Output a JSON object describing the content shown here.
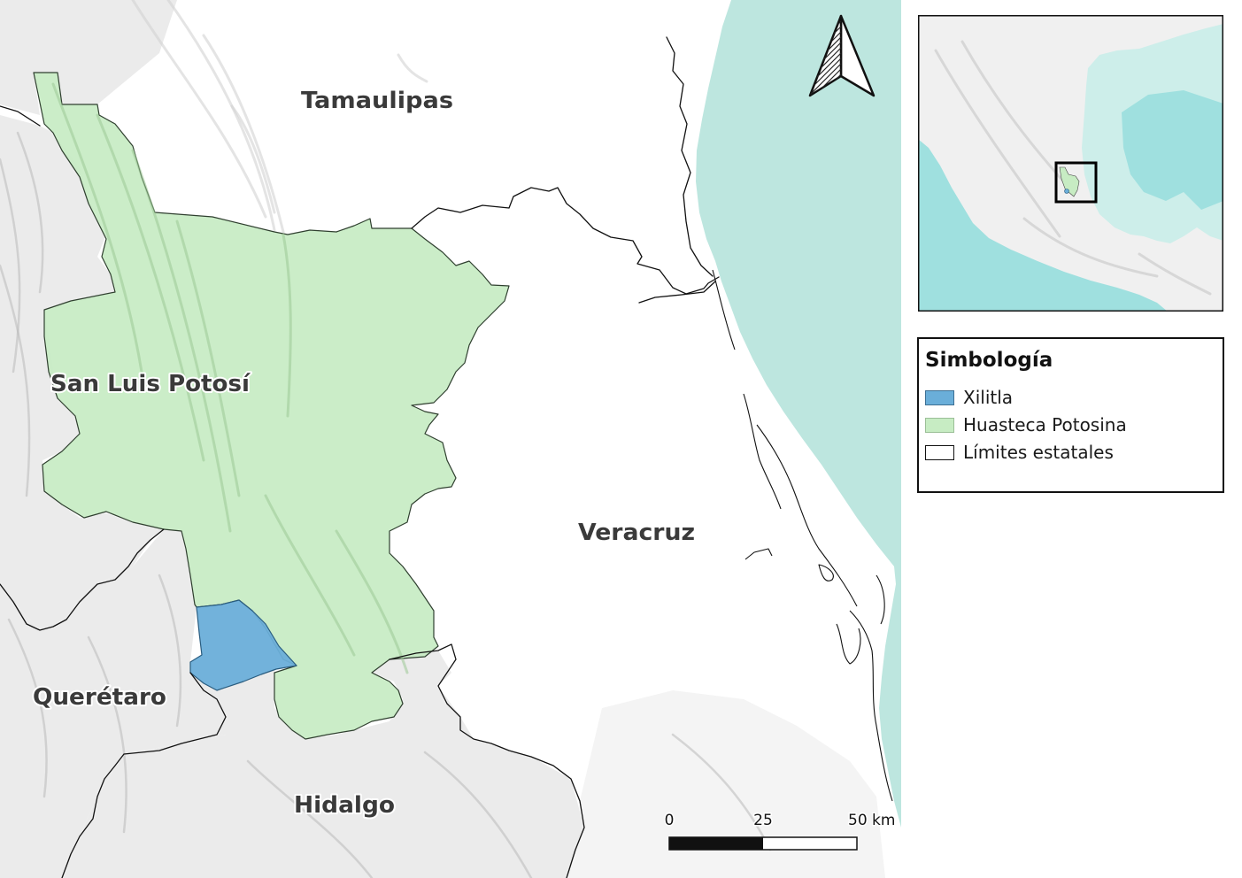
{
  "map": {
    "state_labels": {
      "tamaulipas": "Tamaulipas",
      "san_luis_potosi": "San Luis Potosí",
      "veracruz": "Veracruz",
      "queretaro": "Querétaro",
      "hidalgo": "Hidalgo"
    }
  },
  "scale_bar": {
    "labels": [
      "0",
      "25",
      "50 km"
    ]
  },
  "legend": {
    "title": "Simbología",
    "items": [
      {
        "label": "Xilitla",
        "color": "#6aaed9"
      },
      {
        "label": "Huasteca Potosina",
        "color": "#c7ecc3"
      },
      {
        "label": "Límites estatales",
        "color": "#ffffff"
      }
    ]
  },
  "colors": {
    "sea": "#bde6df",
    "huasteca_fill": "#c7ecc3",
    "xilitla_fill": "#6aaed9",
    "inset_sea_shallow": "#cdeeea",
    "inset_sea_deep": "#9fe0df",
    "inset_land": "#f0f0f0"
  }
}
